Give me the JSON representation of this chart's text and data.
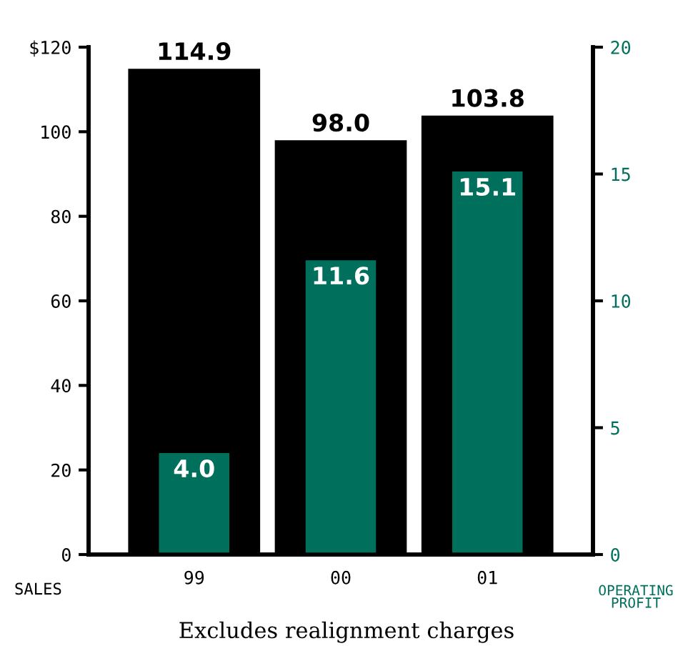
{
  "chart_data": {
    "type": "bar",
    "categories": [
      "99",
      "00",
      "01"
    ],
    "ylabel": "SALES",
    "y2label": "OPERATING PROFIT",
    "series": [
      {
        "color": "#000000",
        "values": [
          114.9,
          98.0,
          103.8
        ],
        "value_labels": [
          "114.9",
          "98.0",
          "103.8"
        ]
      },
      {
        "color": "#006f5c",
        "values": [
          4.0,
          11.6,
          15.1
        ],
        "value_labels": [
          "4.0",
          "11.6",
          "15.1"
        ],
        "axis": "y2"
      }
    ],
    "ylim": [
      0,
      120
    ],
    "yticks": [
      0,
      20,
      40,
      60,
      80,
      100,
      {
        "value": 120,
        "label": "$120"
      }
    ],
    "y2lim": [
      0,
      20
    ],
    "y2ticks": [
      0,
      5,
      10,
      15,
      20
    ],
    "grid": false,
    "legend": false,
    "annotations": [
      "Excludes realignment charges"
    ]
  }
}
